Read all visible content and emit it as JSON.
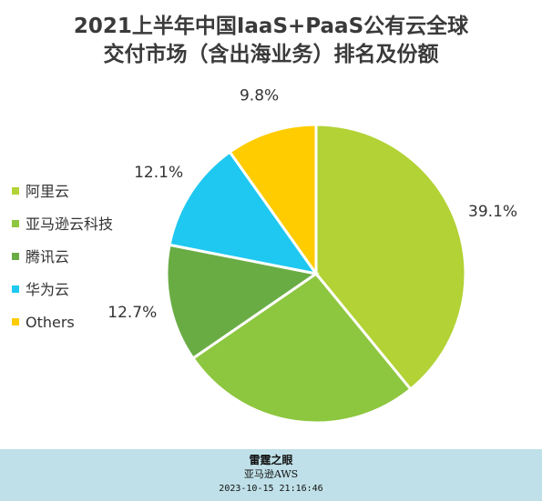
{
  "title_line1": "2021上半年中国IaaS+PaaS公有云全球",
  "title_line2": "交付市场（含出海业务）排名及份额",
  "chart_data": {
    "type": "pie",
    "title": "2021上半年中国IaaS+PaaS公有云全球交付市场（含出海业务）排名及份额",
    "legend_position": "left",
    "slices": [
      {
        "name": "阿里云",
        "value": 39.1,
        "label": "39.1%",
        "color": "#b2d235"
      },
      {
        "name": "亚马逊云科技",
        "value": 26.3,
        "label": "26.3%",
        "color": "#8dc63f"
      },
      {
        "name": "腾讯云",
        "value": 12.7,
        "label": "12.7%",
        "color": "#6aac44"
      },
      {
        "name": "华为云",
        "value": 12.1,
        "label": "12.1%",
        "color": "#1ec8f0"
      },
      {
        "name": "Others",
        "value": 9.8,
        "label": "9.8%",
        "color": "#ffcc00"
      }
    ]
  },
  "watermark": {
    "line1": "雷霆之眼",
    "line2": "亚马逊AWS",
    "line3": "2023-10-15 21:16:46"
  }
}
